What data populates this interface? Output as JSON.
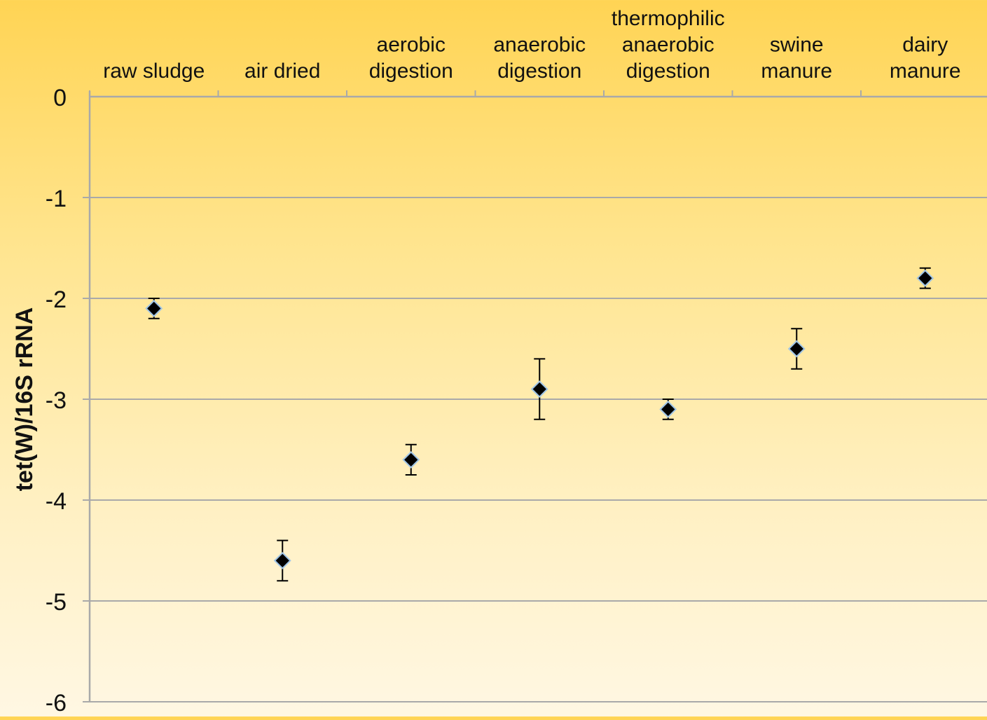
{
  "chart_data": {
    "type": "scatter",
    "title": "",
    "xlabel": "",
    "ylabel": "tet(W)/16S rRNA",
    "ylim": [
      -6,
      0
    ],
    "yticks": [
      0,
      -1,
      -2,
      -3,
      -4,
      -5,
      -6
    ],
    "x_axis_position": "top",
    "grid": true,
    "legend": "none",
    "marker": "diamond",
    "categories": [
      [
        "raw sludge"
      ],
      [
        "air dried"
      ],
      [
        "aerobic",
        "digestion"
      ],
      [
        "anaerobic",
        "digestion"
      ],
      [
        "thermophilic",
        "anaerobic",
        "digestion"
      ],
      [
        "swine",
        "manure"
      ],
      [
        "dairy",
        "manure"
      ]
    ],
    "series": [
      {
        "values": [
          -2.1,
          -4.6,
          -3.6,
          -2.9,
          -3.1,
          -2.5,
          -1.8
        ],
        "error_low": [
          -2.2,
          -4.8,
          -3.75,
          -3.2,
          -3.2,
          -2.7,
          -1.9
        ],
        "error_high": [
          -2.0,
          -4.4,
          -3.45,
          -2.6,
          -3.0,
          -2.3,
          -1.7
        ]
      }
    ],
    "colors": {
      "marker_fill": "#000000",
      "marker_outline": "#9fc4e6",
      "gridline": "#a9a9a9",
      "axis": "#a9a9a9",
      "error_bar": "#000000"
    }
  }
}
